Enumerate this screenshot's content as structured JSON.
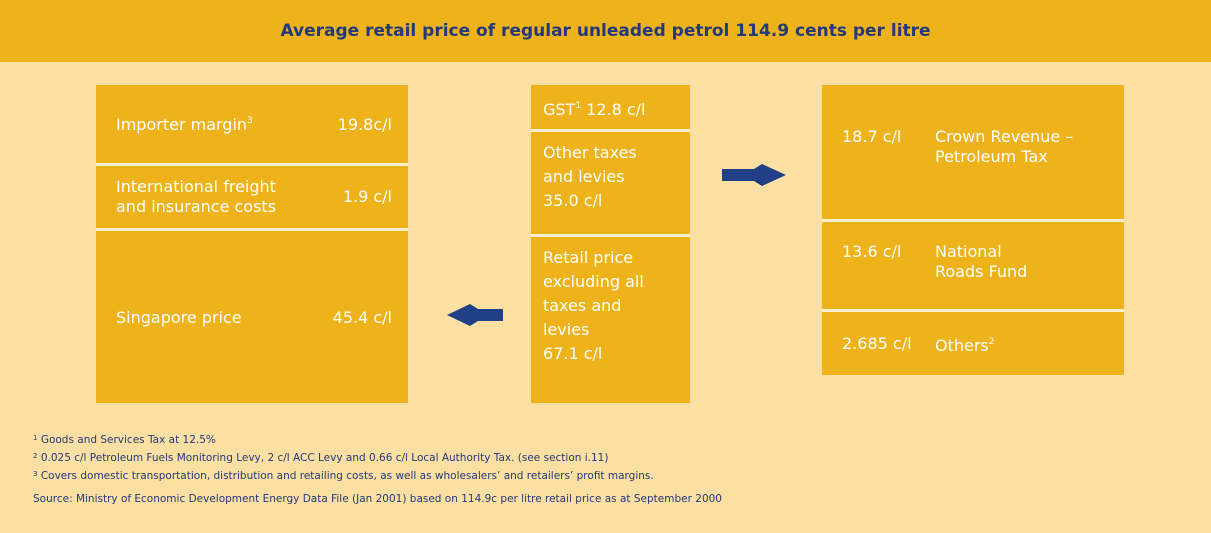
{
  "title": "Average retail price of regular unleaded petrol 114.9 cents per litre",
  "left": [
    {
      "label": "Importer margin",
      "sup": "3",
      "value": "19.8c/l"
    },
    {
      "label": "International freight and insurance costs",
      "value": "1.9 c/l"
    },
    {
      "label": "Singapore price",
      "value": "45.4 c/l"
    }
  ],
  "middle": [
    {
      "label": "GST",
      "sup": "1",
      "value": "12.8 c/l"
    },
    {
      "label": "Other taxes and levies",
      "value": "35.0 c/l"
    },
    {
      "label": "Retail price excluding all taxes and levies",
      "value": "67.1 c/l"
    }
  ],
  "right": [
    {
      "value": "18.7 c/l",
      "label": "Crown Revenue – Petroleum Tax"
    },
    {
      "value": "13.6 c/l",
      "label": "National Roads Fund"
    },
    {
      "value": "2.685 c/l",
      "label": "Others",
      "sup": "2"
    }
  ],
  "footnotes": [
    {
      "mark": "1",
      "text": "Goods and Services Tax at 12.5%"
    },
    {
      "mark": "2",
      "text": "0.025 c/l Petroleum Fuels Monitoring Levy, 2 c/l ACC Levy and 0.66 c/l Local Authority Tax. (see section i.11)"
    },
    {
      "mark": "3",
      "text": "Covers domestic transportation, distribution and retailing costs, as well as wholesalers’ and retailers’ profit margins."
    }
  ],
  "source": "Source: Ministry of Economic Development Energy Data File (Jan 2001) based on 114.9c per litre retail price as at September 2000"
}
